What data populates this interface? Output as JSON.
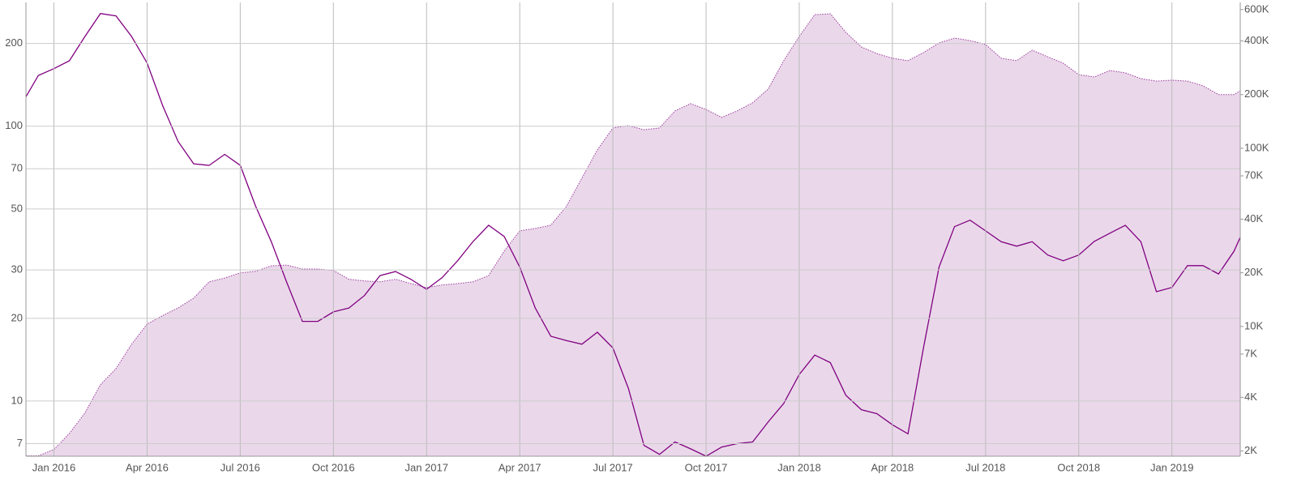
{
  "chart_data": {
    "type": "line",
    "x": [
      -0.9,
      -0.5,
      0,
      0.5,
      1,
      1.5,
      2,
      2.5,
      3,
      3.5,
      4,
      4.5,
      5,
      5.5,
      6,
      6.5,
      7,
      7.5,
      8,
      8.5,
      9,
      9.5,
      10,
      10.5,
      11,
      11.5,
      12,
      12.5,
      13,
      13.5,
      14,
      14.5,
      15,
      15.5,
      16,
      16.5,
      17,
      17.5,
      18,
      18.5,
      19,
      19.5,
      20,
      20.5,
      21,
      21.5,
      22,
      22.5,
      23,
      23.5,
      24,
      24.5,
      25,
      25.5,
      26,
      26.5,
      27,
      27.5,
      28,
      28.5,
      29,
      29.5,
      30,
      30.5,
      31,
      31.5,
      32,
      32.5,
      33,
      33.5,
      34,
      34.5,
      35,
      35.5,
      36,
      36.5,
      37,
      37.5,
      38,
      38.2
    ],
    "xlim": [
      -0.9,
      38.2
    ],
    "xticks": [
      {
        "value": 0,
        "label": "Jan 2016"
      },
      {
        "value": 3,
        "label": "Apr 2016"
      },
      {
        "value": 6,
        "label": "Jul 2016"
      },
      {
        "value": 9,
        "label": "Oct 2016"
      },
      {
        "value": 12,
        "label": "Jan 2017"
      },
      {
        "value": 15,
        "label": "Apr 2017"
      },
      {
        "value": 18,
        "label": "Jul 2017"
      },
      {
        "value": 21,
        "label": "Oct 2017"
      },
      {
        "value": 24,
        "label": "Jan 2018"
      },
      {
        "value": 27,
        "label": "Apr 2018"
      },
      {
        "value": 30,
        "label": "Jul 2018"
      },
      {
        "value": 33,
        "label": "Oct 2018"
      },
      {
        "value": 36,
        "label": "Jan 2019"
      }
    ],
    "ylim": [
      6.3,
      282
    ],
    "yticks": [
      7,
      10,
      20,
      30,
      50,
      70,
      100,
      200
    ],
    "y2lim": [
      1870,
      658000
    ],
    "y2ticks": [
      {
        "value": 2000,
        "label": "2K"
      },
      {
        "value": 4000,
        "label": "4K"
      },
      {
        "value": 7000,
        "label": "7K"
      },
      {
        "value": 10000,
        "label": "10K"
      },
      {
        "value": 20000,
        "label": "20K"
      },
      {
        "value": 40000,
        "label": "40K"
      },
      {
        "value": 70000,
        "label": "70K"
      },
      {
        "value": 100000,
        "label": "100K"
      },
      {
        "value": 200000,
        "label": "200K"
      },
      {
        "value": 400000,
        "label": "400K"
      },
      {
        "value": 600000,
        "label": "600K"
      }
    ],
    "log_scale": true,
    "grid": true,
    "series": [
      {
        "color": "#800080",
        "area": false,
        "values": [
          128,
          153,
          162,
          173,
          212,
          257,
          252,
          212,
          170,
          119,
          88,
          73,
          72,
          79,
          72,
          51,
          38,
          27,
          19.5,
          19.5,
          21.1,
          21.8,
          24.2,
          28.6,
          29.6,
          27.7,
          25.5,
          28.1,
          32.4,
          38.1,
          43.6,
          39.7,
          30.7,
          21.8,
          17.2,
          16.6,
          16.1,
          17.8,
          15.6,
          11.1,
          6.9,
          6.4,
          7.1,
          6.7,
          6.3,
          6.8,
          7.0,
          7.1,
          8.4,
          9.8,
          12.5,
          14.7,
          13.8,
          10.5,
          9.3,
          9.0,
          8.2,
          7.6,
          15.6,
          30.7,
          43.1,
          45.5,
          41.6,
          38,
          36.6,
          38,
          34.0,
          32.4,
          34.0,
          38.1,
          40.8,
          43.6,
          38,
          25.0,
          25.9,
          31.1,
          31.1,
          29.0,
          35.1,
          39.4
        ]
      },
      {
        "color": "#9c3a9c",
        "fill": "#ead8ea",
        "area": true,
        "axis": "y2",
        "values": [
          1880,
          1880,
          2040,
          2510,
          3270,
          4710,
          5800,
          7940,
          10300,
          11500,
          12700,
          14400,
          17800,
          18700,
          20000,
          20400,
          21900,
          22100,
          21000,
          21000,
          20600,
          18400,
          18000,
          17800,
          18400,
          17400,
          16500,
          17100,
          17400,
          17800,
          19300,
          26500,
          34400,
          35500,
          37000,
          47100,
          67900,
          97900,
          130000,
          134000,
          127000,
          130000,
          162000,
          178000,
          165000,
          149000,
          162000,
          180000,
          215000,
          310000,
          424000,
          562000,
          568000,
          447000,
          370000,
          340000,
          320000,
          310000,
          344000,
          390000,
          415000,
          402000,
          382000,
          320000,
          310000,
          355000,
          326000,
          300000,
          259000,
          251000,
          273000,
          265000,
          246000,
          238000,
          241000,
          238000,
          224000,
          200000,
          200000,
          210000
        ]
      }
    ]
  }
}
